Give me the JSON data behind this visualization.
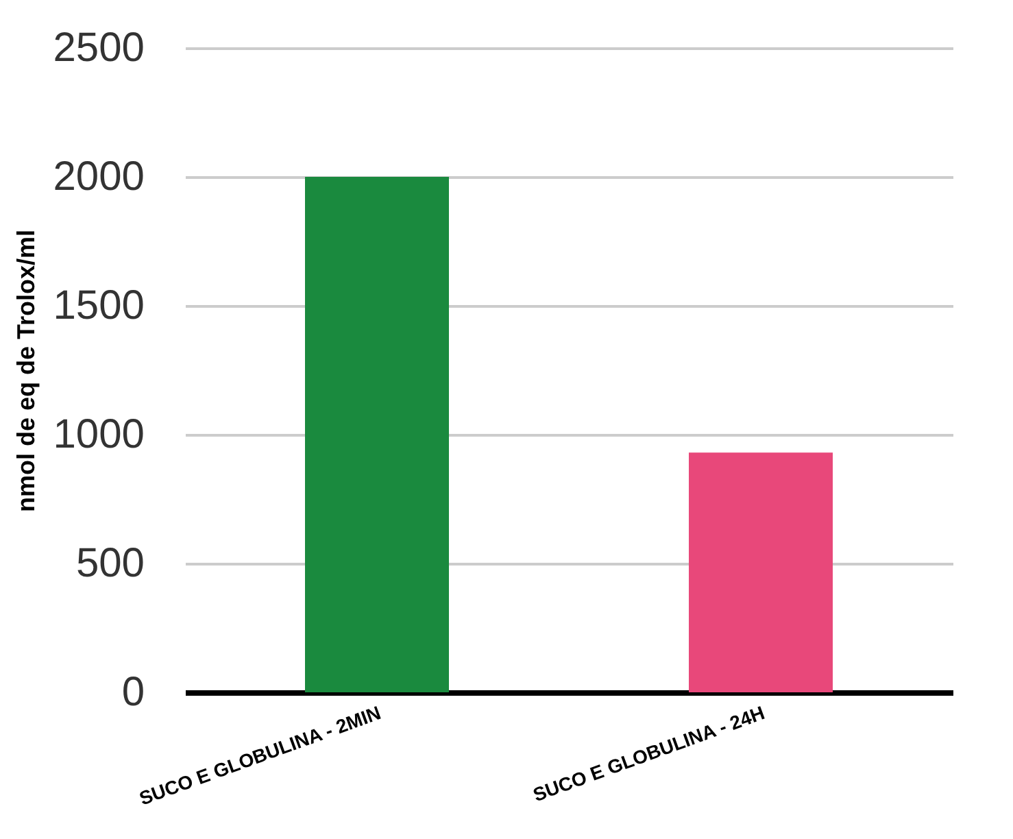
{
  "chart_data": {
    "type": "bar",
    "ylabel": "nmol de eq de Trolox/ml",
    "categories": [
      "SUCO E GLOBULINA - 2MIN",
      "SUCO E GLOBULINA - 24H"
    ],
    "values": [
      2000,
      930
    ],
    "colors": [
      "#1a8a3e",
      "#e8487a"
    ],
    "ylim": [
      0,
      2500
    ],
    "yticks": [
      0,
      500,
      1000,
      1500,
      2000,
      2500
    ],
    "grid": "y"
  }
}
